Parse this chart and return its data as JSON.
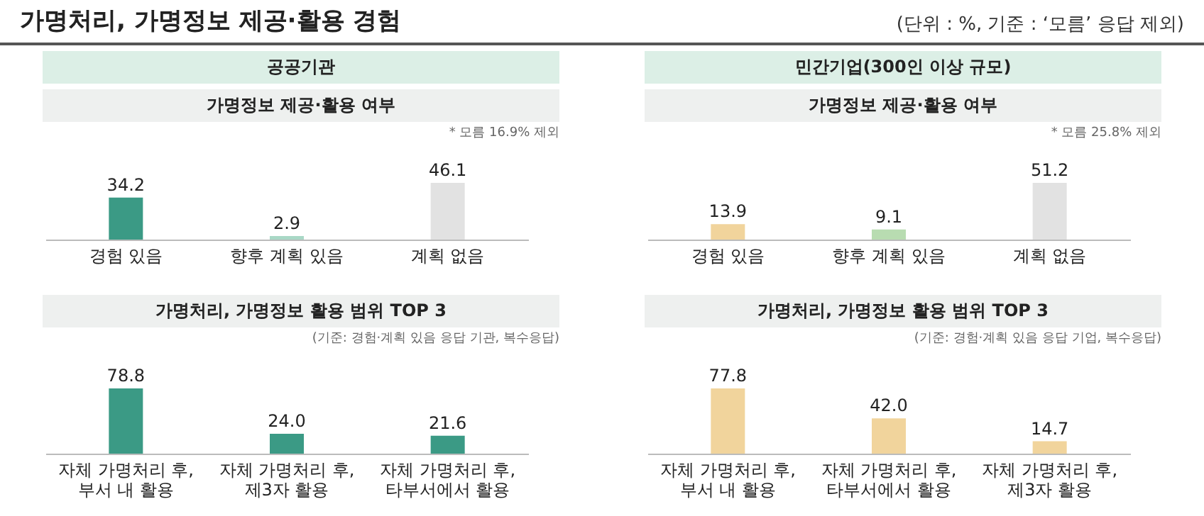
{
  "chart_data": [
    {
      "type": "other",
      "title": "가명처리, 가명정보 제공·활용 경험",
      "annotations": [
        "(단위 : %, 기준 : ‘모름’ 응답 제외)"
      ]
    },
    {
      "type": "bar",
      "title": "공공기관",
      "subtitle": "가명정보 제공·활용 여부",
      "annotations": [
        "* 모름 16.9% 제외"
      ],
      "categories": [
        "경험 있음",
        "향후 계획 있음",
        "계획 없음"
      ],
      "values": [
        34.2,
        2.9,
        46.1
      ],
      "value_labels": [
        "34.2",
        "2.9",
        "46.1"
      ],
      "colors": [
        "#3b9a85",
        "#a9d8c6",
        "#e2e2e2"
      ]
    },
    {
      "type": "bar",
      "title": "민간기업(300인 이상 규모)",
      "subtitle": "가명정보 제공·활용 여부",
      "annotations": [
        "* 모름 25.8% 제외"
      ],
      "categories": [
        "경험 있음",
        "향후 계획 있음",
        "계획 없음"
      ],
      "values": [
        13.9,
        9.1,
        51.2
      ],
      "value_labels": [
        "13.9",
        "9.1",
        "51.2"
      ],
      "colors": [
        "#f1d49c",
        "#b8dcb1",
        "#e2e2e2"
      ]
    },
    {
      "type": "bar",
      "title": "가명처리, 가명정보 활용 범위 TOP 3",
      "annotations": [
        "(기준: 경험·계획 있음 응답 기관, 복수응답)"
      ],
      "categories": [
        "자체 가명처리 후, 부서 내 활용",
        "자체 가명처리 후, 제3자 활용",
        "자체 가명처리 후, 타부서에서 활용"
      ],
      "values": [
        78.8,
        24.0,
        21.6
      ],
      "value_labels": [
        "78.8",
        "24.0",
        "21.6"
      ],
      "colors": [
        "#3b9a85",
        "#3b9a85",
        "#3b9a85"
      ]
    },
    {
      "type": "bar",
      "title": "가명처리, 가명정보 활용 범위 TOP 3",
      "annotations": [
        "(기준: 경험·계획 있음 응답 기업, 복수응답)"
      ],
      "categories": [
        "자체 가명처리 후, 부서 내 활용",
        "자체 가명처리 후, 타부서에서 활용",
        "자체 가명처리 후, 제3자 활용"
      ],
      "values": [
        77.8,
        42.0,
        14.7
      ],
      "value_labels": [
        "77.8",
        "42.0",
        "14.7"
      ],
      "colors": [
        "#f1d49c",
        "#f1d49c",
        "#f1d49c"
      ]
    }
  ]
}
